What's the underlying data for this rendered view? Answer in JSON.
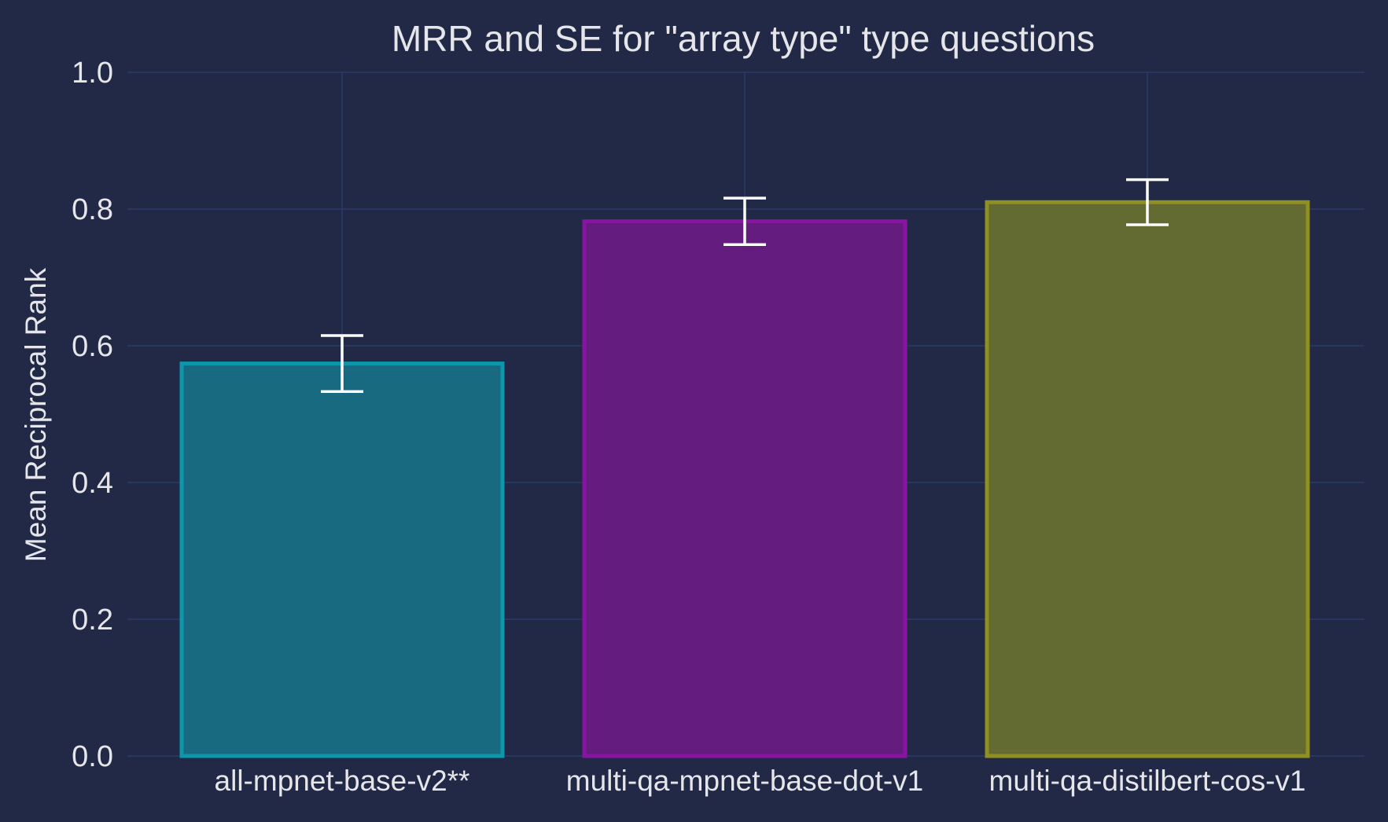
{
  "chart_data": {
    "type": "bar",
    "title": "MRR and SE for \"array type\" type questions",
    "xlabel": "",
    "ylabel": "Mean Reciprocal Rank",
    "ylim": [
      0,
      1.0
    ],
    "yticks": [
      "0.0",
      "0.2",
      "0.4",
      "0.6",
      "0.8",
      "1.0"
    ],
    "grid": true,
    "categories": [
      "all-mpnet-base-v2**",
      "multi-qa-mpnet-base-dot-v1",
      "multi-qa-distilbert-cos-v1"
    ],
    "values": [
      0.574,
      0.782,
      0.81
    ],
    "errors": [
      0.041,
      0.034,
      0.033
    ],
    "bar_fill_colors": [
      "#186a80",
      "#641c7e",
      "#636a32"
    ],
    "bar_edge_colors": [
      "#0d97aa",
      "#8b13a4",
      "#8f901f"
    ],
    "error_bar_color": "#ffffff",
    "background_color": "#212946",
    "grid_color": "#2b3a6b",
    "text_color": "#e6e6ea"
  }
}
